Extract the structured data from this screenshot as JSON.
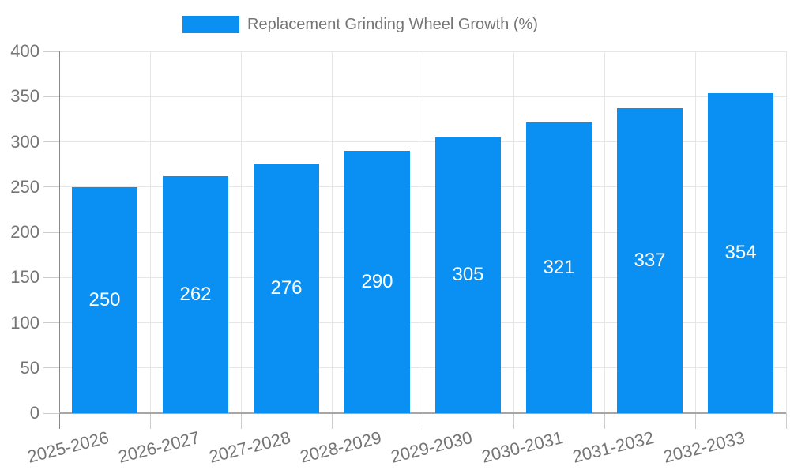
{
  "colors": {
    "bar": "#0a8ff2",
    "value_label": "#ffffff",
    "axis_text": "#757575",
    "grid_line": "#e6e6e6",
    "tick_line": "#cccccc",
    "y_axis_line": "#8a8a8a",
    "x_baseline": "#a6a6a6",
    "background": "#ffffff"
  },
  "chart_data": {
    "type": "bar",
    "categories": [
      "2025-2026",
      "2026-2027",
      "2027-2028",
      "2028-2029",
      "2029-2030",
      "2030-2031",
      "2031-2032",
      "2032-2033"
    ],
    "series": [
      {
        "name": "Replacement Grinding Wheel Growth (%)",
        "values": [
          250,
          262,
          276,
          290,
          305,
          321,
          337,
          354
        ]
      }
    ],
    "yticks": [
      0,
      50,
      100,
      150,
      200,
      250,
      300,
      350,
      400
    ],
    "ylim": [
      0,
      400
    ],
    "grid": "on",
    "legend_position": "top-center",
    "value_labels": "inside-center",
    "x_label_rotation_deg": -14
  }
}
